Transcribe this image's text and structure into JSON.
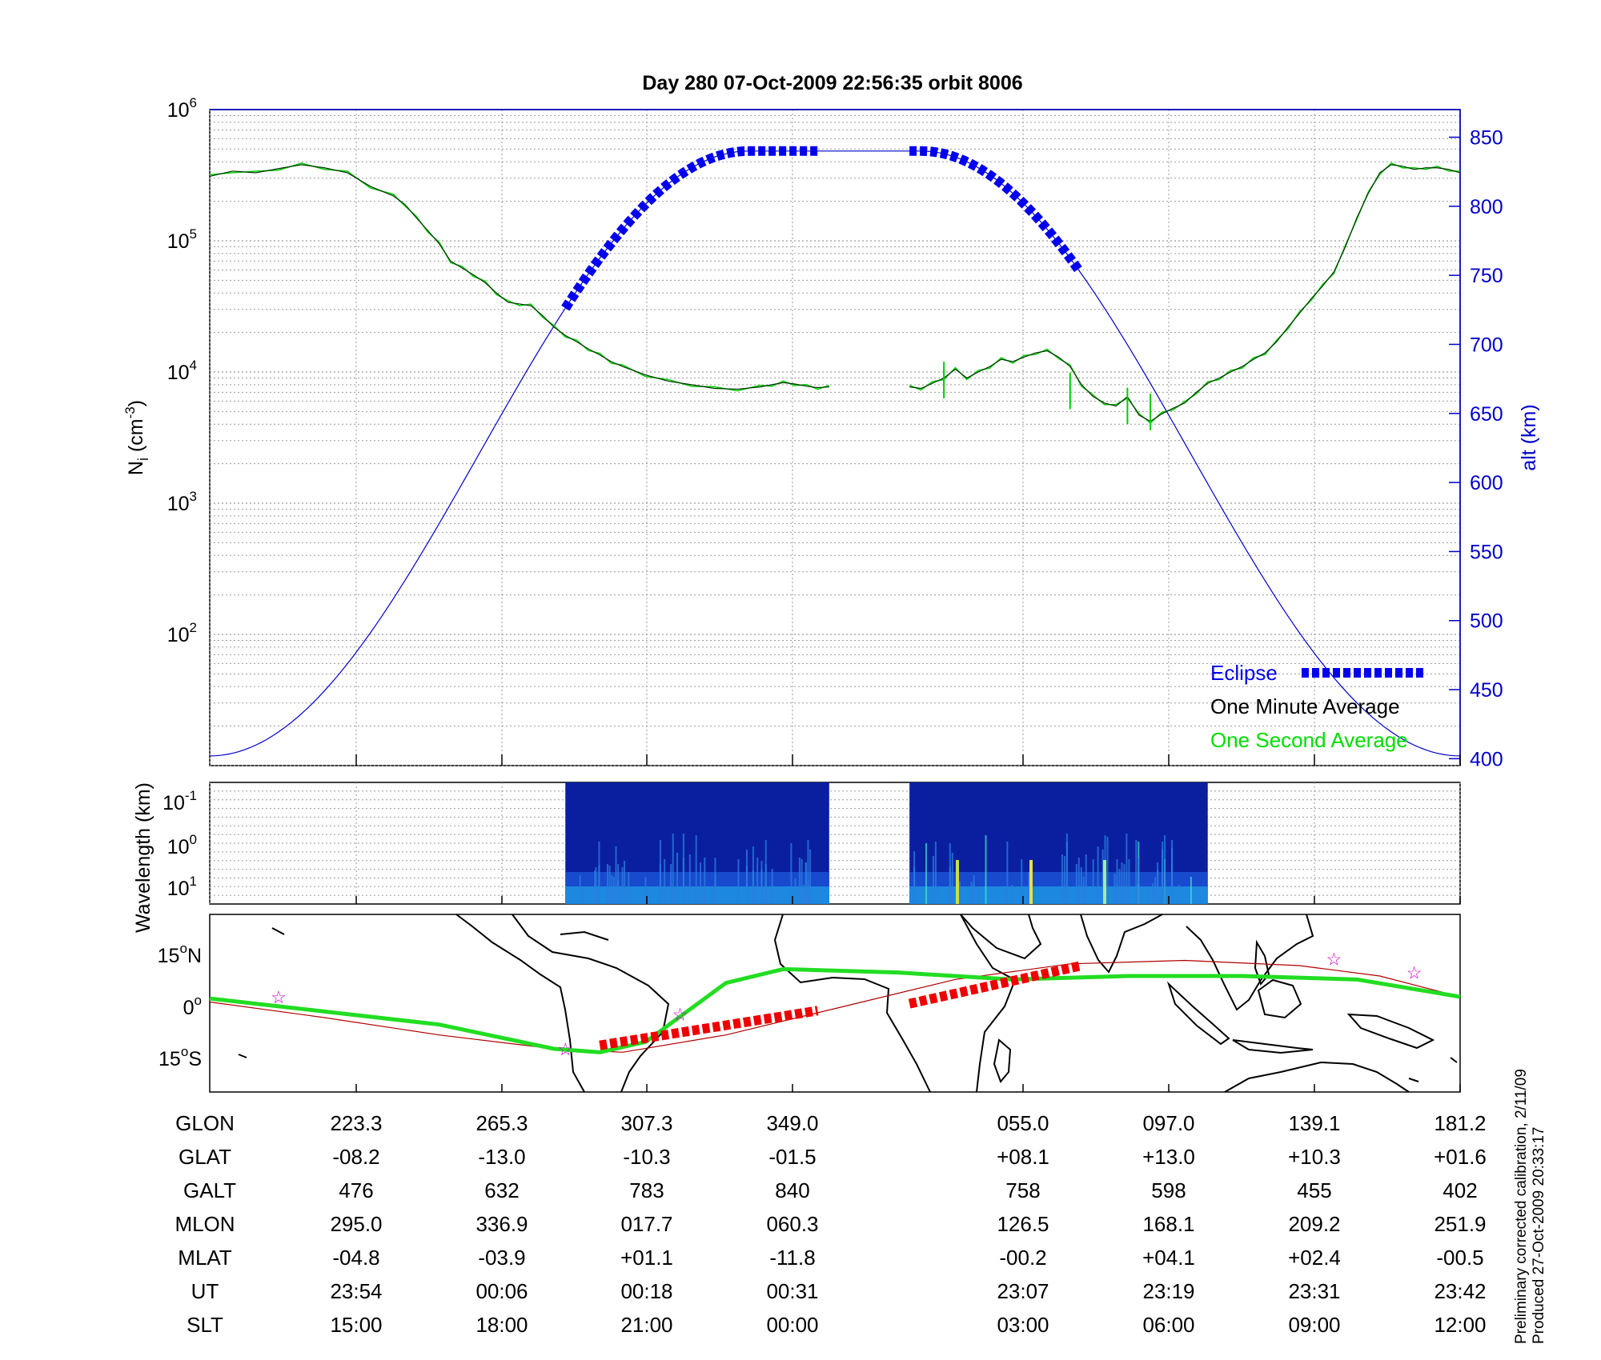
{
  "title": "Day 280  07-Oct-2009 22:56:35   orbit 8006",
  "colors": {
    "eclipse": "#0000ee",
    "minute_avg": "#000000",
    "second_avg": "#00dd00",
    "alt_axis": "#0000cc",
    "track": "#b00000",
    "map_eclipse": "#ee0000",
    "star": "#cc00cc"
  },
  "chart_data": [
    {
      "id": "density",
      "type": "line",
      "ylabel": "N",
      "ylabel_sub": "i",
      "ylabel_unit": "(cm",
      "ylabel_unit_sup": "-3",
      "ylabel_close": ")",
      "yscale": "log",
      "ylim": [
        10,
        1000000
      ],
      "yticks": [
        {
          "base": "10",
          "exp": "2"
        },
        {
          "base": "10",
          "exp": "3"
        },
        {
          "base": "10",
          "exp": "4"
        },
        {
          "base": "10",
          "exp": "5"
        },
        {
          "base": "10",
          "exp": "6"
        }
      ],
      "y2label": "alt (km)",
      "y2lim": [
        395,
        870
      ],
      "y2ticks": [
        "400",
        "450",
        "500",
        "550",
        "600",
        "650",
        "700",
        "750",
        "800",
        "850"
      ],
      "legend": {
        "eclipse": "Eclipse",
        "minute": "One Minute Average",
        "second": "One Second Average",
        "position": "bottom-right"
      },
      "series": [
        {
          "name": "One Minute Average",
          "axis": "left",
          "points": [
            [
              0,
              310000
            ],
            [
              2,
              340000
            ],
            [
              4,
              330000
            ],
            [
              6,
              355000
            ],
            [
              8,
              380000
            ],
            [
              10,
              360000
            ],
            [
              12,
              330000
            ],
            [
              14,
              260000
            ],
            [
              16,
              220000
            ],
            [
              17,
              190000
            ],
            [
              18,
              150000
            ],
            [
              19,
              120000
            ],
            [
              20,
              95000
            ],
            [
              21,
              70000
            ],
            [
              22,
              62000
            ],
            [
              23,
              55000
            ],
            [
              24,
              48000
            ],
            [
              25,
              40000
            ],
            [
              26,
              34000
            ],
            [
              27,
              33000
            ],
            [
              28,
              32000
            ],
            [
              29,
              27000
            ],
            [
              30,
              22000
            ],
            [
              31,
              19000
            ],
            [
              32,
              17000
            ],
            [
              33,
              15000
            ],
            [
              34,
              13500
            ],
            [
              35,
              12000
            ],
            [
              36,
              11000
            ],
            [
              38,
              9500
            ],
            [
              40,
              8500
            ],
            [
              42,
              8000
            ],
            [
              44,
              7500
            ],
            [
              46,
              7400
            ],
            [
              48,
              7700
            ],
            [
              49,
              8000
            ],
            [
              50,
              8300
            ],
            [
              51,
              8100
            ],
            [
              52,
              7800
            ],
            [
              53,
              7600
            ],
            [
              54,
              7700
            ]
          ]
        },
        {
          "name": "One Minute Average",
          "axis": "left",
          "points": [
            [
              61,
              7700
            ],
            [
              62,
              7500
            ],
            [
              63,
              8200
            ],
            [
              64,
              9000
            ],
            [
              65,
              10500
            ],
            [
              66,
              9000
            ],
            [
              67,
              10000
            ],
            [
              68,
              11000
            ],
            [
              69,
              12500
            ],
            [
              70,
              12000
            ],
            [
              71,
              13000
            ],
            [
              72,
              14000
            ],
            [
              73,
              14500
            ],
            [
              74,
              13000
            ],
            [
              75,
              11000
            ],
            [
              76,
              8000
            ],
            [
              77,
              6500
            ],
            [
              78,
              5800
            ],
            [
              79,
              5500
            ],
            [
              80,
              6500
            ],
            [
              81,
              4700
            ],
            [
              82,
              4200
            ],
            [
              83,
              4800
            ],
            [
              84,
              5300
            ],
            [
              85,
              5800
            ],
            [
              86,
              7000
            ],
            [
              87,
              8200
            ],
            [
              88,
              9000
            ],
            [
              89,
              10000
            ],
            [
              90,
              11000
            ],
            [
              91,
              12500
            ],
            [
              92,
              14000
            ],
            [
              93,
              17000
            ],
            [
              94,
              22000
            ],
            [
              95,
              28000
            ],
            [
              96,
              36000
            ],
            [
              97,
              45000
            ],
            [
              98,
              58000
            ],
            [
              99,
              90000
            ],
            [
              100,
              150000
            ],
            [
              101,
              230000
            ],
            [
              102,
              330000
            ],
            [
              103,
              380000
            ],
            [
              104,
              370000
            ],
            [
              105,
              350000
            ],
            [
              106,
              360000
            ],
            [
              107,
              360000
            ],
            [
              108,
              350000
            ],
            [
              109,
              330000
            ]
          ]
        }
      ],
      "altitude": {
        "name": "alt",
        "axis": "right",
        "min": 402,
        "max": 840,
        "x_min": 0,
        "x_max": 47,
        "x_half": 54,
        "x_end": 109
      },
      "eclipse_segments": [
        [
          31,
          53
        ],
        [
          61,
          76
        ]
      ],
      "x_ticks_ut": [
        "23:54",
        "00:06",
        "00:18",
        "00:31",
        "23:07",
        "23:19",
        "23:31",
        "23:42"
      ]
    },
    {
      "id": "spectrogram",
      "type": "heatmap",
      "ylabel": "Wavelength (km)",
      "yticks": [
        {
          "base": "10",
          "exp": "-1"
        },
        {
          "base": "10",
          "exp": "0"
        },
        {
          "base": "10",
          "exp": "1"
        }
      ],
      "blocks": [
        [
          31,
          54
        ],
        [
          61,
          87
        ]
      ]
    },
    {
      "id": "ground_track",
      "type": "line",
      "yticks": [
        {
          "num": "15",
          "hemi": "N"
        },
        {
          "num": "0",
          "hemi": ""
        },
        {
          "num": "15",
          "hemi": "S"
        }
      ],
      "ylim": [
        -20,
        25
      ],
      "track_lat": [
        [
          0,
          2.5
        ],
        [
          20,
          -5
        ],
        [
          30,
          -12
        ],
        [
          34,
          -13
        ],
        [
          38,
          -10
        ],
        [
          45,
          7
        ],
        [
          50,
          11
        ],
        [
          60,
          10
        ],
        [
          70,
          8
        ],
        [
          80,
          9
        ],
        [
          90,
          9
        ],
        [
          100,
          8
        ],
        [
          109,
          3
        ]
      ],
      "red_track_lat": [
        [
          0,
          1.5
        ],
        [
          10,
          -3
        ],
        [
          20,
          -8
        ],
        [
          30,
          -12
        ],
        [
          36,
          -13
        ],
        [
          45,
          -8
        ],
        [
          55,
          0
        ],
        [
          65,
          8
        ],
        [
          75,
          12.5
        ],
        [
          85,
          13.5
        ],
        [
          95,
          12
        ],
        [
          102,
          9
        ],
        [
          109,
          3
        ]
      ],
      "eclipse_tracks": [
        [
          [
            34,
            -11
          ],
          [
            53,
            -1
          ]
        ],
        [
          [
            61,
            1
          ],
          [
            76,
            12
          ]
        ]
      ],
      "stars": [
        [
          6,
          3
        ],
        [
          31,
          -12
        ],
        [
          41,
          -2
        ],
        [
          98,
          14
        ],
        [
          105,
          10
        ]
      ]
    }
  ],
  "table": {
    "row_labels": [
      "GLON",
      "GLAT",
      "GALT",
      "MLON",
      "MLAT",
      "UT",
      "SLT"
    ],
    "columns": [
      [
        "223.3",
        "-08.2",
        "476",
        "295.0",
        "-04.8",
        "23:54",
        "15:00"
      ],
      [
        "265.3",
        "-13.0",
        "632",
        "336.9",
        "-03.9",
        "00:06",
        "18:00"
      ],
      [
        "307.3",
        "-10.3",
        "783",
        "017.7",
        "+01.1",
        "00:18",
        "21:00"
      ],
      [
        "349.0",
        "-01.5",
        "840",
        "060.3",
        "-11.8",
        "00:31",
        "00:00"
      ],
      [
        "055.0",
        "+08.1",
        "758",
        "126.5",
        "-00.2",
        "23:07",
        "03:00"
      ],
      [
        "097.0",
        "+13.0",
        "598",
        "168.1",
        "+04.1",
        "23:19",
        "06:00"
      ],
      [
        "139.1",
        "+10.3",
        "455",
        "209.2",
        "+02.4",
        "23:31",
        "09:00"
      ],
      [
        "181.2",
        "+01.6",
        "402",
        "251.9",
        "-00.5",
        "23:42",
        "12:00"
      ]
    ]
  },
  "footnote": {
    "line1": "Preliminary corrected calibration, 2/11/09",
    "line2": "Produced 27-Oct-2009 20:33:17"
  }
}
